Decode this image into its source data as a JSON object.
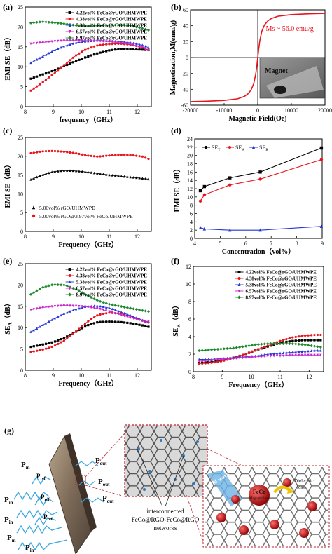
{
  "figure": {
    "panel_letters": [
      "(a)",
      "(b)",
      "(c)",
      "(d)",
      "(e)",
      "(f)",
      "(g)"
    ],
    "colors": {
      "s1": "#000000",
      "s2": "#e8141c",
      "s3": "#2437d6",
      "s4": "#cc22cc",
      "s5": "#1c8a2c"
    }
  },
  "chart_data": [
    {
      "panel": "(a)",
      "type": "line",
      "xlabel": "frequency（GHz）",
      "ylabel": "EMI SE（dB）",
      "xlim": [
        8,
        12.5
      ],
      "ylim": [
        0,
        25
      ],
      "xticks": [
        8,
        9,
        10,
        11,
        12
      ],
      "yticks": [
        0,
        5,
        10,
        15,
        20,
        25
      ],
      "legend": "top-right",
      "x": [
        8.2,
        8.6,
        9.0,
        9.4,
        9.8,
        10.2,
        10.6,
        11.0,
        11.4,
        11.8,
        12.2,
        12.4
      ],
      "series": [
        {
          "name": "4.22vol% FeCo@rGO/UHMWPE",
          "values": [
            7.0,
            8.0,
            9.0,
            10.2,
            11.4,
            12.5,
            13.4,
            14.1,
            14.5,
            14.4,
            14.3,
            14.2
          ]
        },
        {
          "name": "4.38vol% FeCo@rGO/UHMWPE",
          "values": [
            4.0,
            6.0,
            8.2,
            10.5,
            12.8,
            14.5,
            15.4,
            15.7,
            15.8,
            15.5,
            14.8,
            14.2
          ]
        },
        {
          "name": "5.38vol% FeCo@rGO/UHMWPE",
          "values": [
            11.0,
            12.5,
            14.0,
            15.2,
            16.0,
            16.4,
            16.6,
            16.5,
            16.3,
            16.0,
            15.4,
            14.8
          ]
        },
        {
          "name": "6.57vol% FeCo@rGO/UHMWPE",
          "values": [
            15.8,
            16.1,
            16.4,
            16.6,
            16.6,
            16.6,
            16.5,
            16.3,
            16.0,
            15.6,
            14.8,
            14.2
          ]
        },
        {
          "name": "8.97vol% FeCo@rGO/UHMWPE",
          "values": [
            21.0,
            21.3,
            21.1,
            20.8,
            20.4,
            20.2,
            20.3,
            20.5,
            20.5,
            20.3,
            19.6,
            19.2
          ]
        }
      ]
    },
    {
      "panel": "(b)",
      "type": "line",
      "xlabel": "Magnetic Field(Oe)",
      "ylabel": "Magnetization,M(emu/g)",
      "xlim": [
        -20000,
        20000
      ],
      "ylim": [
        -60,
        60
      ],
      "xticks": [
        -20000,
        -10000,
        0,
        10000,
        20000
      ],
      "yticks": [
        -60,
        -40,
        -20,
        0,
        20,
        40,
        60
      ],
      "annotation": "Ms ~ 56.0 emu/g",
      "inset_label": "Magnet",
      "series": [
        {
          "name": "",
          "x": [
            -20000,
            -15000,
            -10000,
            -6000,
            -4000,
            -3000,
            -2000,
            -1200,
            -600,
            -300,
            0,
            300,
            600,
            1200,
            2000,
            3000,
            4000,
            6000,
            10000,
            15000,
            20000
          ],
          "values": [
            -55.5,
            -55.0,
            -54.0,
            -52.0,
            -49.0,
            -46.0,
            -41.0,
            -33.0,
            -21.0,
            -11.0,
            0,
            11.0,
            21.0,
            33.0,
            41.0,
            46.0,
            49.0,
            52.0,
            54.0,
            55.0,
            55.5
          ]
        }
      ]
    },
    {
      "panel": "(c)",
      "type": "line",
      "xlabel": "Frequency（GHz）",
      "ylabel": "EMI SE（dB）",
      "xlim": [
        8,
        12.5
      ],
      "ylim": [
        0,
        25
      ],
      "xticks": [
        8,
        9,
        10,
        11,
        12
      ],
      "yticks": [
        0,
        5,
        10,
        15,
        20,
        25
      ],
      "legend": "bottom-left",
      "x": [
        8.2,
        8.6,
        9.0,
        9.4,
        9.8,
        10.2,
        10.6,
        11.0,
        11.4,
        11.8,
        12.2,
        12.4
      ],
      "series": [
        {
          "name": "5.00vol% rGO/UHMWPE",
          "values": [
            13.8,
            15.0,
            15.9,
            16.2,
            16.1,
            15.8,
            15.4,
            15.0,
            14.7,
            14.4,
            14.1,
            13.9
          ]
        },
        {
          "name": "5.00vol% rGO@3.97vol% FeCo/UHMWPE",
          "values": [
            20.8,
            21.3,
            21.4,
            21.2,
            20.8,
            20.2,
            19.9,
            20.2,
            20.4,
            20.3,
            19.9,
            19.3
          ]
        }
      ]
    },
    {
      "panel": "(d)",
      "type": "line",
      "xlabel": "Concentration（vol%）",
      "ylabel": "EMI SE（dB）",
      "xlim": [
        4,
        9
      ],
      "ylim": [
        0,
        24
      ],
      "xticks": [
        4,
        5,
        6,
        7,
        8,
        9
      ],
      "yticks": [
        0,
        2,
        4,
        6,
        8,
        10,
        12,
        14,
        16,
        18,
        20,
        22,
        24
      ],
      "legend": "top-left",
      "legend_labels": [
        {
          "base": "SE",
          "sub": "T"
        },
        {
          "base": "SE",
          "sub": "A"
        },
        {
          "base": "SE",
          "sub": "R"
        }
      ],
      "x": [
        4.22,
        4.38,
        5.38,
        6.57,
        8.97
      ],
      "series": [
        {
          "name": "SE_T",
          "values": [
            11.5,
            12.5,
            14.6,
            16.0,
            21.8
          ]
        },
        {
          "name": "SE_A",
          "values": [
            9.0,
            10.5,
            12.9,
            14.3,
            19.0
          ]
        },
        {
          "name": "SE_R",
          "values": [
            2.6,
            2.3,
            2.0,
            2.0,
            2.9
          ]
        }
      ]
    },
    {
      "panel": "(e)",
      "type": "line",
      "xlabel": "Frequency（GHz）",
      "ylabel": "SE_A（dB）",
      "ylabel_parts": {
        "base": "SE",
        "sub": "A",
        "unit": "（dB）"
      },
      "xlim": [
        8,
        12.5
      ],
      "ylim": [
        0,
        25
      ],
      "xticks": [
        8,
        9,
        10,
        11,
        12
      ],
      "yticks": [
        0,
        5,
        10,
        15,
        20,
        25
      ],
      "legend": "top-right",
      "x": [
        8.2,
        8.6,
        9.0,
        9.4,
        9.8,
        10.2,
        10.6,
        11.0,
        11.4,
        11.8,
        12.2,
        12.4
      ],
      "series": [
        {
          "name": "4.22vol% FeCo@rGO/UHMWPE",
          "values": [
            5.5,
            6.0,
            6.6,
            7.6,
            9.0,
            10.5,
            11.3,
            11.4,
            11.3,
            11.0,
            10.5,
            10.2
          ]
        },
        {
          "name": "4.38vol% FeCo@rGO/UHMWPE",
          "values": [
            4.3,
            4.8,
            5.6,
            7.0,
            9.0,
            11.3,
            13.0,
            13.5,
            13.3,
            12.6,
            11.6,
            11.2
          ]
        },
        {
          "name": "5.38vol% FeCo@rGO/UHMWPE",
          "values": [
            9.0,
            10.5,
            12.0,
            13.3,
            14.3,
            15.0,
            15.1,
            14.6,
            13.7,
            12.7,
            11.7,
            11.3
          ]
        },
        {
          "name": "6.57vol% FeCo@rGO/UHMWPE",
          "values": [
            14.2,
            14.7,
            15.0,
            15.2,
            15.1,
            14.9,
            14.5,
            13.8,
            13.0,
            12.3,
            11.6,
            11.4
          ]
        },
        {
          "name": "8.97vol% FeCo@rGO/UHMWPE",
          "values": [
            17.8,
            19.4,
            20.1,
            20.0,
            19.0,
            17.6,
            16.3,
            15.5,
            15.0,
            14.5,
            14.0,
            13.8
          ]
        }
      ]
    },
    {
      "panel": "(f)",
      "type": "line",
      "xlabel": "Frequency（GHz）",
      "ylabel": "SE_R（dB）",
      "ylabel_parts": {
        "base": "SE",
        "sub": "R",
        "unit": "（dB）"
      },
      "xlim": [
        8,
        12.5
      ],
      "ylim": [
        0,
        12
      ],
      "xticks": [
        8,
        9,
        10,
        11,
        12
      ],
      "yticks": [
        0,
        2,
        4,
        6,
        8,
        10,
        12
      ],
      "legend": "top-right",
      "x": [
        8.2,
        8.6,
        9.0,
        9.4,
        9.8,
        10.2,
        10.6,
        11.0,
        11.4,
        11.8,
        12.2,
        12.4
      ],
      "series": [
        {
          "name": "4.22vol% FeCo@rGO/UHMWPE",
          "values": [
            1.0,
            1.1,
            1.3,
            1.6,
            2.0,
            2.5,
            2.9,
            3.3,
            3.5,
            3.6,
            3.6,
            3.6
          ]
        },
        {
          "name": "4.38vol% FeCo@rGO/UHMWPE",
          "values": [
            0.9,
            1.0,
            1.2,
            1.6,
            2.0,
            2.5,
            3.0,
            3.5,
            3.9,
            4.1,
            4.2,
            4.2
          ]
        },
        {
          "name": "5.38vol% FeCo@rGO/UHMWPE",
          "values": [
            1.4,
            1.4,
            1.5,
            1.6,
            1.7,
            1.8,
            2.0,
            2.1,
            2.2,
            2.3,
            2.4,
            2.4
          ]
        },
        {
          "name": "6.57vol% FeCo@rGO/UHMWPE",
          "values": [
            1.2,
            1.3,
            1.4,
            1.5,
            1.6,
            1.7,
            1.8,
            1.8,
            1.9,
            1.9,
            1.9,
            1.9
          ]
        },
        {
          "name": "8.97vol% FeCo@rGO/UHMWPE",
          "values": [
            2.4,
            2.5,
            2.6,
            2.7,
            2.9,
            3.1,
            3.2,
            3.2,
            3.2,
            3.1,
            2.9,
            2.8
          ]
        }
      ]
    }
  ],
  "schematic": {
    "panel": "(g)",
    "labels": {
      "p_in": "P",
      "p_in_sub": "in",
      "p_ref": "P",
      "p_ref_sub": "ref",
      "p_out": "P",
      "p_out_sub": "out",
      "network_line1": "interconnected",
      "network_line2": "FeCo@RGO-FeCo@RGO",
      "network_line3": "networks",
      "em_wave": "EM wave",
      "feco": "FeCo",
      "magnetic_loss": "Magnetic loss",
      "dielectric_line1": "Dielectric",
      "dielectric_line2": "loss"
    }
  }
}
